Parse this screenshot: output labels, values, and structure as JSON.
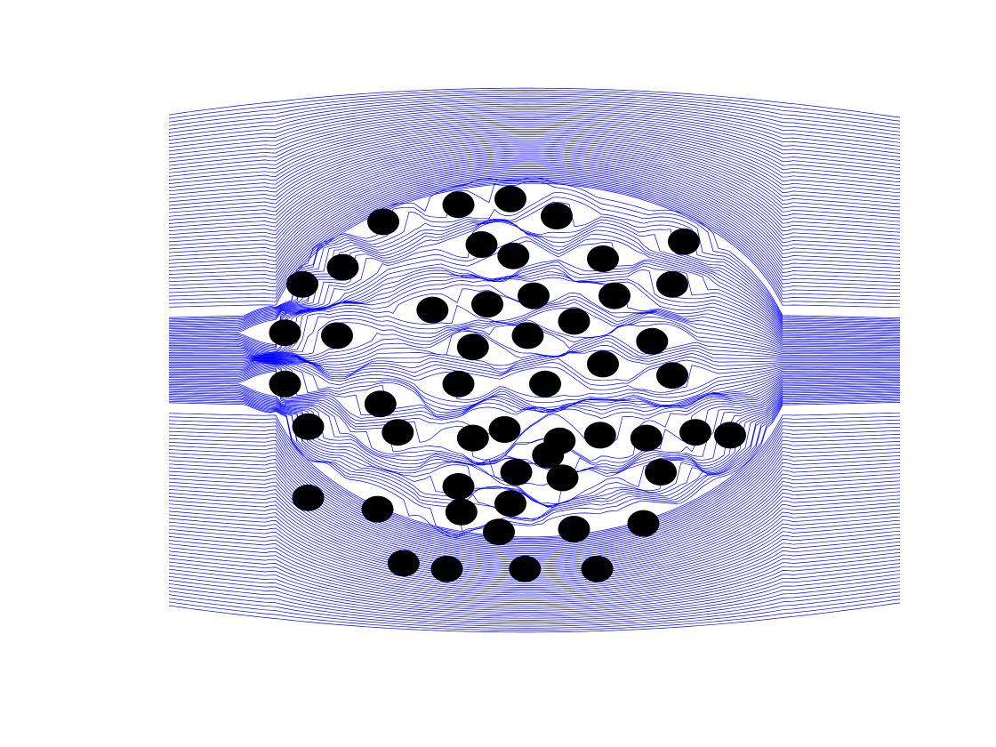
{
  "figure": {
    "line_color": "#0000ff",
    "obstacle_color": "#000000",
    "background": "#ffffff",
    "description_visible_text": ""
  },
  "flow": {
    "direction": "left-to-right",
    "streamline_count": 170,
    "obstacle_count": 52
  },
  "obstacles": [
    [
      -2.6,
      2.4
    ],
    [
      -1.3,
      2.7
    ],
    [
      -0.4,
      2.8
    ],
    [
      0.4,
      2.5
    ],
    [
      -0.9,
      2.0
    ],
    [
      -0.35,
      1.8
    ],
    [
      1.2,
      1.75
    ],
    [
      -3.3,
      1.6
    ],
    [
      -4.0,
      1.3
    ],
    [
      -1.75,
      0.85
    ],
    [
      -0.8,
      0.95
    ],
    [
      0.0,
      1.1
    ],
    [
      0.7,
      0.65
    ],
    [
      1.4,
      1.1
    ],
    [
      2.4,
      1.3
    ],
    [
      -4.3,
      0.45
    ],
    [
      -3.4,
      0.4
    ],
    [
      -1.05,
      0.2
    ],
    [
      -0.1,
      0.4
    ],
    [
      1.2,
      -0.1
    ],
    [
      2.05,
      0.3
    ],
    [
      2.4,
      -0.3
    ],
    [
      -4.3,
      -0.45
    ],
    [
      -2.65,
      -0.8
    ],
    [
      -1.3,
      -0.45
    ],
    [
      0.2,
      -0.45
    ],
    [
      -3.9,
      -1.2
    ],
    [
      -1.05,
      -1.4
    ],
    [
      -0.5,
      -1.25
    ],
    [
      0.45,
      -1.45
    ],
    [
      1.15,
      -1.35
    ],
    [
      1.95,
      -1.4
    ],
    [
      2.8,
      -1.3
    ],
    [
      3.4,
      -1.35
    ],
    [
      -1.3,
      -2.25
    ],
    [
      -0.3,
      -2.0
    ],
    [
      0.5,
      -2.1
    ],
    [
      2.2,
      -2.0
    ],
    [
      -3.9,
      -2.45
    ],
    [
      -2.7,
      -2.65
    ],
    [
      -1.25,
      -2.7
    ],
    [
      -0.4,
      -2.55
    ],
    [
      0.7,
      -3.0
    ],
    [
      1.9,
      -2.9
    ],
    [
      -2.25,
      -3.6
    ],
    [
      -1.5,
      -3.7
    ],
    [
      -0.15,
      -3.7
    ],
    [
      1.1,
      -3.7
    ],
    [
      -0.6,
      -3.05
    ],
    [
      0.25,
      -1.7
    ],
    [
      -2.35,
      -1.3
    ],
    [
      2.6,
      2.05
    ]
  ]
}
